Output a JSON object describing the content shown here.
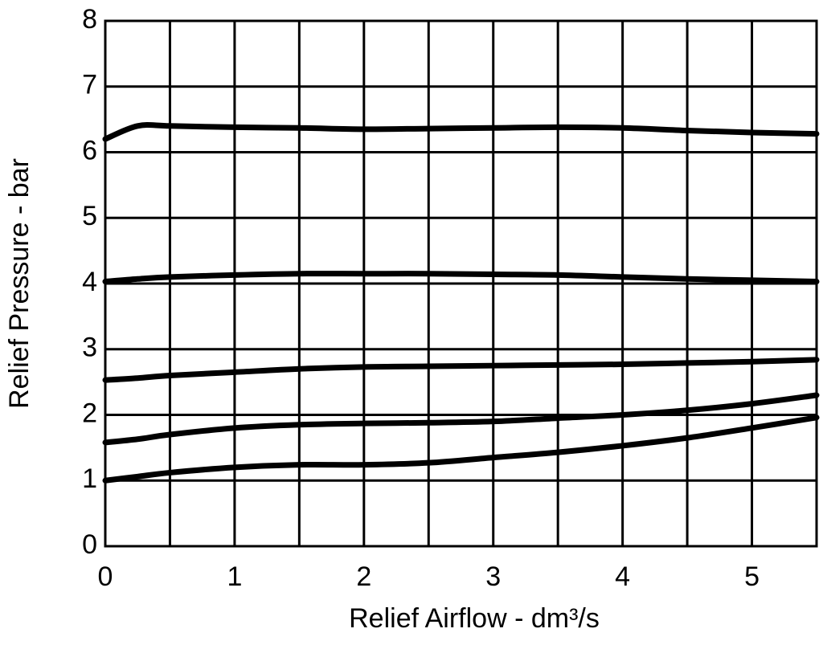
{
  "chart_data": {
    "type": "line",
    "x_label": "Relief Airflow - dm³/s",
    "y_label": "Relief Pressure - bar",
    "x": [
      0,
      0.25,
      0.5,
      1,
      1.5,
      2,
      2.5,
      3,
      3.5,
      4,
      4.5,
      5,
      5.5
    ],
    "series": [
      {
        "color": "#000000",
        "values": [
          6.2,
          6.4,
          6.4,
          6.38,
          6.37,
          6.35,
          6.36,
          6.37,
          6.38,
          6.37,
          6.33,
          6.3,
          6.28
        ]
      },
      {
        "color": "#000000",
        "values": [
          4.03,
          4.07,
          4.1,
          4.13,
          4.15,
          4.15,
          4.15,
          4.14,
          4.13,
          4.1,
          4.07,
          4.05,
          4.03
        ]
      },
      {
        "color": "#000000",
        "values": [
          2.53,
          2.56,
          2.6,
          2.65,
          2.7,
          2.73,
          2.74,
          2.75,
          2.76,
          2.77,
          2.79,
          2.81,
          2.84
        ]
      },
      {
        "color": "#000000",
        "values": [
          1.58,
          1.63,
          1.7,
          1.8,
          1.85,
          1.87,
          1.88,
          1.9,
          1.95,
          2.0,
          2.07,
          2.17,
          2.3
        ]
      },
      {
        "color": "#000000",
        "values": [
          1.0,
          1.06,
          1.12,
          1.2,
          1.24,
          1.24,
          1.27,
          1.35,
          1.43,
          1.53,
          1.65,
          1.8,
          1.96
        ]
      }
    ],
    "xlim": [
      0,
      5.5
    ],
    "xticks": [
      0,
      1,
      2,
      3,
      4,
      5
    ],
    "x_minor_grid": [
      0.5,
      1.5,
      2.5,
      3.5,
      4.5,
      5.5
    ],
    "ylim": [
      0,
      8
    ],
    "yticks": [
      0,
      1,
      2,
      3,
      4,
      5,
      6,
      7,
      8
    ],
    "grid": true
  }
}
